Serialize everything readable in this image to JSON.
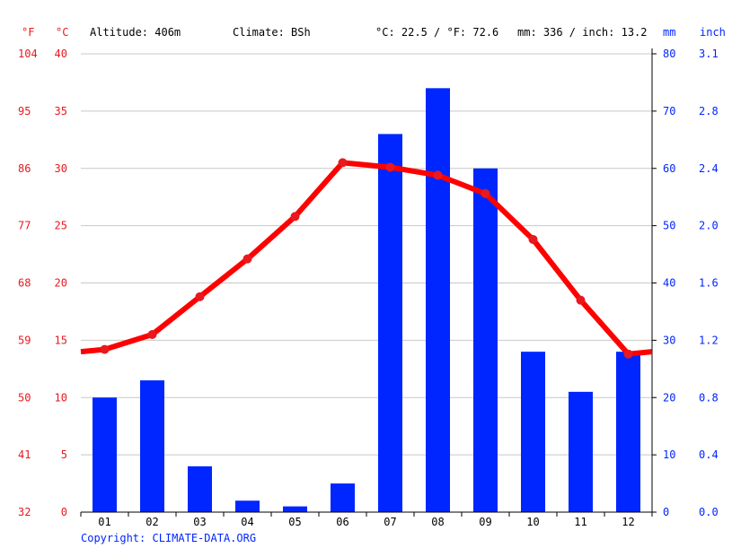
{
  "header": {
    "unit_f": "°F",
    "unit_c": "°C",
    "altitude": "Altitude: 406m",
    "climate": "Climate: BSh",
    "temp_avg": "°C: 22.5 / °F: 72.6",
    "precip_total": "mm: 336 / inch: 13.2",
    "unit_mm": "mm",
    "unit_inch": "inch"
  },
  "footer": {
    "copyright": "Copyright: CLIMATE-DATA.ORG"
  },
  "colors": {
    "temperature": "#ff0000",
    "precipitation": "#0026ff",
    "grid": "#c8c8c8",
    "axis_f_c": "#e8191f",
    "axis_mm_inch": "#0026ff"
  },
  "chart_data": {
    "type": "bar",
    "categories": [
      "01",
      "02",
      "03",
      "04",
      "05",
      "06",
      "07",
      "08",
      "09",
      "10",
      "11",
      "12"
    ],
    "series": [
      {
        "type": "bar",
        "axis": "mm",
        "values": [
          20,
          23,
          8,
          2,
          1,
          5,
          66,
          74,
          60,
          28,
          21,
          28
        ]
      },
      {
        "type": "line",
        "axis": "c",
        "values": [
          14.2,
          15.5,
          18.8,
          22.1,
          25.8,
          30.5,
          30.1,
          29.4,
          27.8,
          23.8,
          18.5,
          13.8
        ]
      }
    ],
    "line_edge_start": 14.0,
    "line_edge_end": 14.0,
    "axes": {
      "f": {
        "ticks": [
          "104",
          "95",
          "86",
          "77",
          "68",
          "59",
          "50",
          "41",
          "32"
        ]
      },
      "c": {
        "ticks": [
          "40",
          "35",
          "30",
          "25",
          "20",
          "15",
          "10",
          "5",
          "0"
        ],
        "ylim": [
          0,
          40
        ]
      },
      "mm": {
        "ticks": [
          "80",
          "70",
          "60",
          "50",
          "40",
          "30",
          "20",
          "10",
          "0"
        ],
        "ylim": [
          0,
          80
        ]
      },
      "inch": {
        "ticks": [
          "3.1",
          "2.8",
          "2.4",
          "2.0",
          "1.6",
          "1.2",
          "0.8",
          "0.4",
          "0.0"
        ]
      }
    },
    "grid": true
  }
}
